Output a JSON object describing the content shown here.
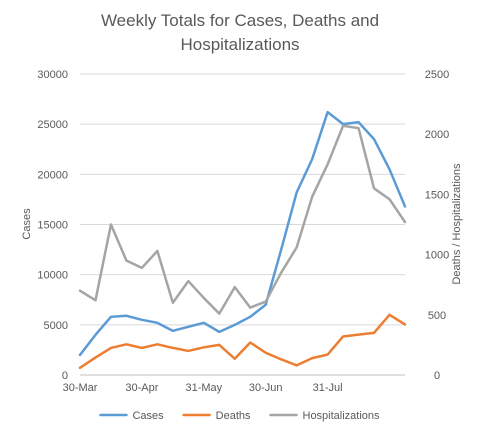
{
  "chart_data": {
    "type": "line",
    "title_lines": [
      "Weekly Totals for Cases, Deaths and",
      "Hospitalizations"
    ],
    "ylabel_left": "Cases",
    "ylabel_right": "Deaths / Hospitalizations",
    "y_left": {
      "min": 0,
      "max": 30000,
      "ticks": [
        "0",
        "5000",
        "10000",
        "15000",
        "20000",
        "25000",
        "30000"
      ]
    },
    "y_right": {
      "min": 0,
      "max": 2500,
      "ticks": [
        "0",
        "500",
        "1000",
        "1500",
        "2000",
        "2500"
      ]
    },
    "x_tick_labels": [
      "30-Mar",
      "30-Apr",
      "31-May",
      "30-Jun",
      "31-Jul"
    ],
    "x_tick_index": [
      0,
      4,
      8,
      12,
      16
    ],
    "gridlines": true,
    "legend_position": "bottom",
    "series": [
      {
        "name": "Cases",
        "axis": "left",
        "color": "#5B9BD5",
        "values": [
          2000,
          4000,
          5800,
          5900,
          5500,
          5200,
          4400,
          4800,
          5200,
          4300,
          5000,
          5800,
          7000,
          12500,
          18200,
          21500,
          26200,
          25000,
          25200,
          23500,
          20500,
          16800
        ]
      },
      {
        "name": "Deaths",
        "axis": "right",
        "color": "#ED7D31",
        "values": [
          60,
          145,
          225,
          255,
          225,
          255,
          225,
          200,
          230,
          250,
          135,
          270,
          185,
          130,
          80,
          140,
          170,
          320,
          335,
          350,
          500,
          420
        ]
      },
      {
        "name": "Hospitalizations",
        "axis": "right",
        "color": "#A5A5A5",
        "values": [
          700,
          620,
          1250,
          950,
          890,
          1030,
          600,
          780,
          640,
          510,
          730,
          560,
          610,
          850,
          1060,
          1480,
          1750,
          2070,
          2050,
          1550,
          1460,
          1270
        ]
      }
    ]
  }
}
